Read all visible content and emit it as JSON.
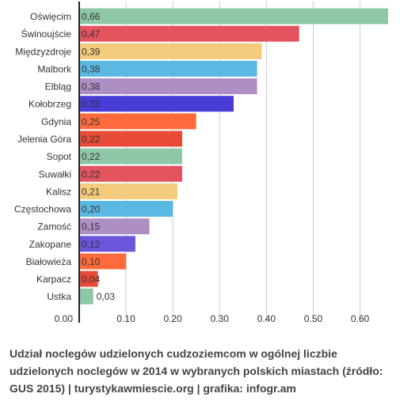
{
  "chart_data": {
    "type": "bar",
    "orientation": "horizontal",
    "categories": [
      "Oświęcim",
      "Świnoujście",
      "Międzyzdroje",
      "Malbork",
      "Elbląg",
      "Kołobrzeg",
      "Gdynia",
      "Jelenia Góra",
      "Sopot",
      "Suwałki",
      "Kalisz",
      "Częstochowa",
      "Zamość",
      "Zakopane",
      "Białowieża",
      "Karpacz",
      "Ustka"
    ],
    "values": [
      0.66,
      0.47,
      0.39,
      0.38,
      0.38,
      0.33,
      0.25,
      0.22,
      0.22,
      0.22,
      0.21,
      0.2,
      0.15,
      0.12,
      0.1,
      0.04,
      0.03
    ],
    "value_labels": [
      "0,66",
      "0,47",
      "0,39",
      "0,38",
      "0,38",
      "0,33",
      "0,25",
      "0,22",
      "0,22",
      "0,22",
      "0,21",
      "0,20",
      "0,15",
      "0,12",
      "0,10",
      "0,04",
      "0,03"
    ],
    "bar_colors": [
      "#8ec7a8",
      "#e3545f",
      "#f4cb7c",
      "#5bb8e3",
      "#ae8fc4",
      "#4a3cd6",
      "#ff6b3d",
      "#e84b37",
      "#8ec7a8",
      "#e3545f",
      "#f4cb7c",
      "#5bb8e3",
      "#ae8fc4",
      "#6d55db",
      "#ff6b3d",
      "#e84b37",
      "#8ec7a8"
    ],
    "xlim": [
      0,
      0.66
    ],
    "x_ticks": [
      0,
      0.1,
      0.2,
      0.3,
      0.4,
      0.5,
      0.6
    ],
    "x_tick_labels": [
      "0.00",
      "0.10",
      "0.20",
      "0.30",
      "0.40",
      "0.50",
      "0.60"
    ],
    "grid": true,
    "gridline_color": "#cccccc",
    "axis_color": "#222222",
    "caption": "Udział noclegów udzielonych cudzoziemcom w ogólnej liczbie udzielonych noclegów w 2014 w wybranych polskich miastach (źródło: GUS 2015) | turystykawmiescie.org | grafika: infogr.am"
  }
}
